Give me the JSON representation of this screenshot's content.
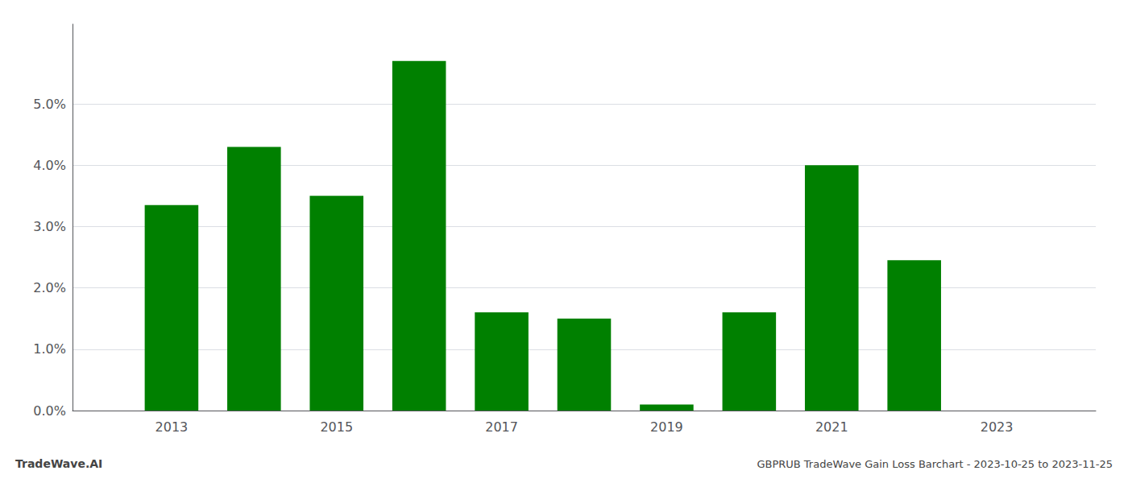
{
  "chart_data": {
    "type": "bar",
    "title": "GBPRUB TradeWave Gain Loss Barchart - 2023-10-25 to 2023-11-25",
    "annotations": [
      "TradeWave.AI"
    ],
    "x": [
      2013,
      2014,
      2015,
      2016,
      2017,
      2018,
      2019,
      2020,
      2021,
      2022,
      2023
    ],
    "values": [
      0.0335,
      0.043,
      0.035,
      0.057,
      0.016,
      0.015,
      0.001,
      0.016,
      0.04,
      0.0245,
      0.0
    ],
    "color": "#008000",
    "xlim": [
      2011.8,
      2024.2
    ],
    "xticks": [
      2013,
      2015,
      2017,
      2019,
      2021,
      2023
    ],
    "ylim": [
      0.0,
      0.063
    ],
    "yticks": [
      {
        "value": 0.0,
        "label": "0.0%"
      },
      {
        "value": 0.01,
        "label": "1.0%"
      },
      {
        "value": 0.02,
        "label": "2.0%"
      },
      {
        "value": 0.03,
        "label": "3.0%"
      },
      {
        "value": 0.04,
        "label": "4.0%"
      },
      {
        "value": 0.05,
        "label": "5.0%"
      }
    ],
    "grid": true
  }
}
